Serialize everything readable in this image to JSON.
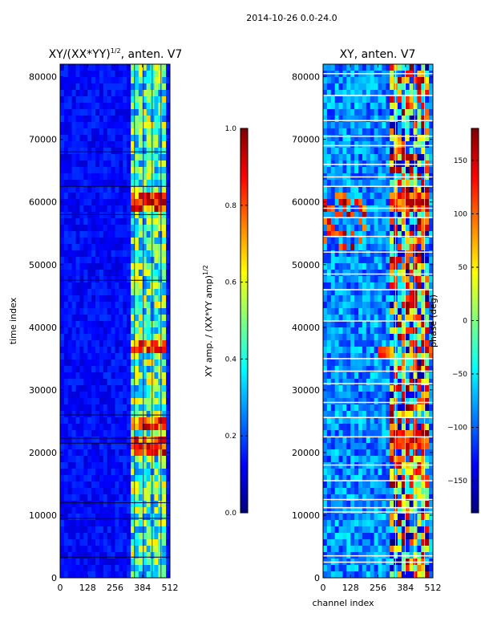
{
  "suptitle": "2014-10-26 0.0-24.0",
  "colors": {
    "jet": [
      "#00007f",
      "#0000ff",
      "#007fff",
      "#00ffff",
      "#7fff7f",
      "#ffff00",
      "#ff7f00",
      "#ff0000",
      "#7f0000"
    ],
    "axis": "#000000",
    "gridline": "#ffffff"
  },
  "chart_data": [
    {
      "type": "heatmap",
      "title": "XY/(XX*YY)",
      "title_exponent": "1/2",
      "title_suffix": ", anten. V7",
      "xlabel": "",
      "ylabel": "time index",
      "x_range": [
        0,
        512
      ],
      "y_range": [
        0,
        82000
      ],
      "x_ticks": [
        0,
        128,
        256,
        384,
        512
      ],
      "y_ticks": [
        0,
        10000,
        20000,
        30000,
        40000,
        50000,
        60000,
        70000,
        80000
      ],
      "x_tick_labels": [
        "0",
        "128",
        "256",
        "384",
        "512"
      ],
      "y_tick_labels": [
        "0",
        "10000",
        "20000",
        "30000",
        "40000",
        "50000",
        "60000",
        "70000",
        "80000"
      ],
      "colorbar": {
        "label": "XY amp. / (XX*YY amp)",
        "label_exponent": "1/2",
        "range": [
          0.0,
          1.0
        ],
        "ticks": [
          0.0,
          0.2,
          0.4,
          0.6,
          0.8,
          1.0
        ],
        "tick_labels": [
          "0.0",
          "0.2",
          "0.4",
          "0.6",
          "0.8",
          "1.0"
        ]
      },
      "band_channel_range": [
        330,
        495
      ],
      "high_value_time_bands": [
        [
          19500,
          22500
        ],
        [
          23500,
          25500
        ],
        [
          35500,
          37500
        ],
        [
          58500,
          61000
        ]
      ],
      "gap_time_index": [
        3300,
        9500,
        12000,
        21500,
        22300,
        26000,
        47500,
        58000,
        62500,
        68000,
        82000
      ]
    },
    {
      "type": "heatmap",
      "title": "XY, anten. V7",
      "xlabel": "channel index",
      "ylabel": "",
      "x_range": [
        0,
        512
      ],
      "y_range": [
        0,
        82000
      ],
      "x_ticks": [
        0,
        128,
        256,
        384,
        512
      ],
      "y_ticks": [
        0,
        10000,
        20000,
        30000,
        40000,
        50000,
        60000,
        70000,
        80000
      ],
      "x_tick_labels": [
        "0",
        "128",
        "256",
        "384",
        "512"
      ],
      "y_tick_labels": [
        "0",
        "10000",
        "20000",
        "30000",
        "40000",
        "50000",
        "60000",
        "70000",
        "80000"
      ],
      "colorbar": {
        "label": "phase (deg)",
        "range": [
          -180,
          180
        ],
        "ticks": [
          -150,
          -100,
          -50,
          0,
          50,
          100,
          150
        ],
        "tick_labels": [
          "−150",
          "−100",
          "−50",
          "0",
          "50",
          "100",
          "150"
        ]
      },
      "band_channel_range": [
        320,
        500
      ],
      "white_gap_time_index": [
        2500,
        3500,
        10500,
        11200,
        12500,
        15500,
        18000,
        22500,
        25600,
        28000,
        31000,
        33000,
        35000,
        41000,
        46000,
        48500,
        52000,
        54500,
        57500,
        59000,
        62500,
        64000,
        66000,
        69000,
        70500,
        73000,
        77000,
        80500
      ]
    }
  ]
}
